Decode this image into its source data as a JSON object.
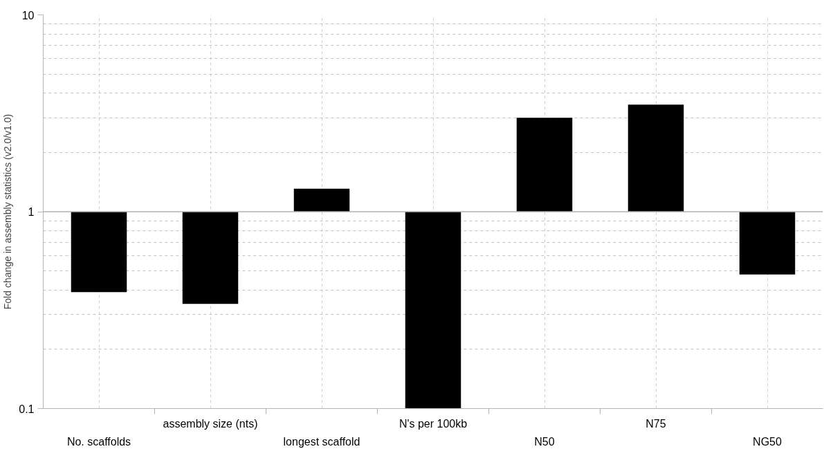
{
  "chart_data": {
    "type": "bar",
    "ylabel": "Fold change in assembly statistics (v2.0/v1.0)",
    "categories": [
      "No. scaffolds",
      "assembly size (nts)",
      "longest scaffold",
      "N's per 100kb",
      "N50",
      "N75",
      "NG50"
    ],
    "base": [
      1,
      1,
      1,
      1,
      1,
      1,
      1
    ],
    "values": [
      -0.61,
      -0.66,
      0.31,
      -0.9,
      2.0,
      2.5,
      -0.52
    ],
    "color": "#000000",
    "log": true,
    "ylim": [
      0.1,
      10
    ],
    "yticks": [
      0.1,
      1,
      10
    ],
    "grid": true,
    "ref_lines": [
      {
        "axis": "y",
        "value": 1,
        "color": "#b3b3b3"
      }
    ]
  }
}
